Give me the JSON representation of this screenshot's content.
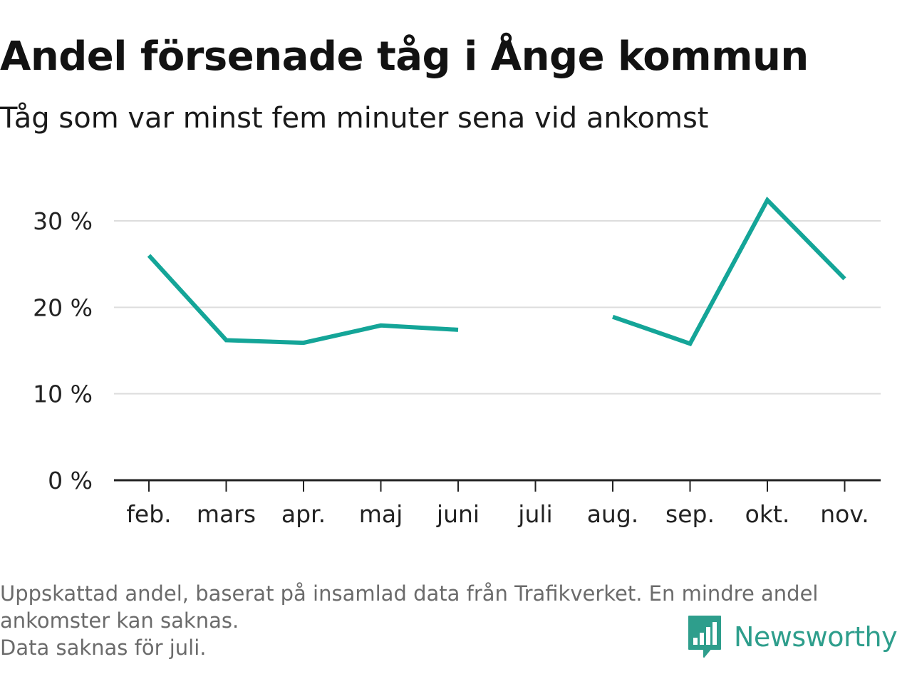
{
  "title": "Andel försenade tåg i Ånge kommun",
  "subtitle": "Tåg som var minst fem minuter sena vid ankomst",
  "footer": {
    "line1": "Uppskattad andel, baserat på insamlad data från Trafikverket. En mindre andel",
    "line2": "ankomster kan saknas.",
    "line3": "Data saknas för juli."
  },
  "brand": {
    "name": "Newsworthy",
    "icon": "newsworthy-logo-icon",
    "color": "#2e9e8c"
  },
  "colors": {
    "line": "#14a598",
    "grid": "#dddddd",
    "axis": "#222222",
    "tick_text": "#222222"
  },
  "chart_data": {
    "type": "line",
    "title": "Andel försenade tåg i Ånge kommun",
    "subtitle": "Tåg som var minst fem minuter sena vid ankomst",
    "categories": [
      "feb.",
      "mars",
      "apr.",
      "maj",
      "juni",
      "juli",
      "aug.",
      "sep.",
      "okt.",
      "nov."
    ],
    "series": [
      {
        "values": [
          26.0,
          16.2,
          15.9,
          17.9,
          17.4,
          null,
          18.9,
          15.8,
          32.4,
          23.3
        ]
      }
    ],
    "ylim": [
      0,
      30
    ],
    "yticks": [
      0,
      10,
      20,
      30
    ],
    "ytick_labels": [
      "0 %",
      "10 %",
      "20 %",
      "30 %"
    ],
    "xlabel": "",
    "ylabel": "",
    "grid": true,
    "legend": "none"
  }
}
